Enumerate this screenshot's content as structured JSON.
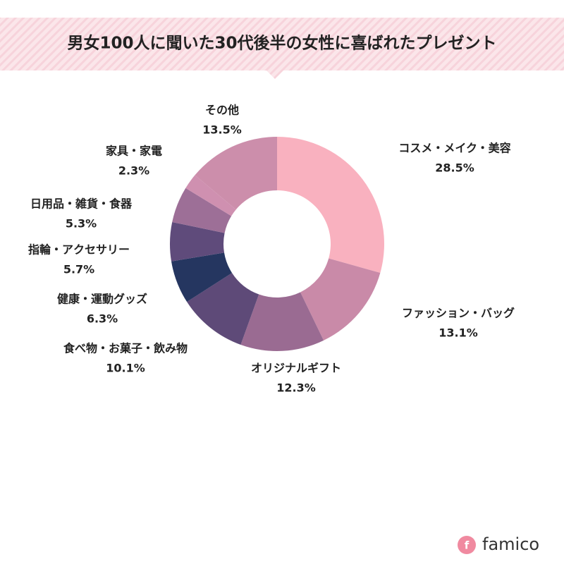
{
  "chart_data": {
    "type": "donut",
    "title": "男女100人に聞いた30代後半の女性に喜ばれたプレゼント",
    "categories": [
      "コスメ・メイク・美容",
      "ファッション・バッグ",
      "オリジナルギフト",
      "食べ物・お菓子・飲み物",
      "健康・運動グッズ",
      "指輪・アクセサリー",
      "日用品・雑貨・食器",
      "家具・家電",
      "その他"
    ],
    "values": [
      28.5,
      13.1,
      12.3,
      10.1,
      6.3,
      5.7,
      5.3,
      2.3,
      13.5
    ],
    "value_labels": [
      "28.5%",
      "13.1%",
      "12.3%",
      "10.1%",
      "6.3%",
      "5.7%",
      "5.3%",
      "2.3%",
      "13.5%"
    ],
    "colors": [
      "#f9b1bf",
      "#c98aa8",
      "#9a6b92",
      "#5e4a78",
      "#253660",
      "#5f4b7b",
      "#9d6f97",
      "#cf90b0",
      "#cc8eab"
    ]
  },
  "logo": "famico"
}
